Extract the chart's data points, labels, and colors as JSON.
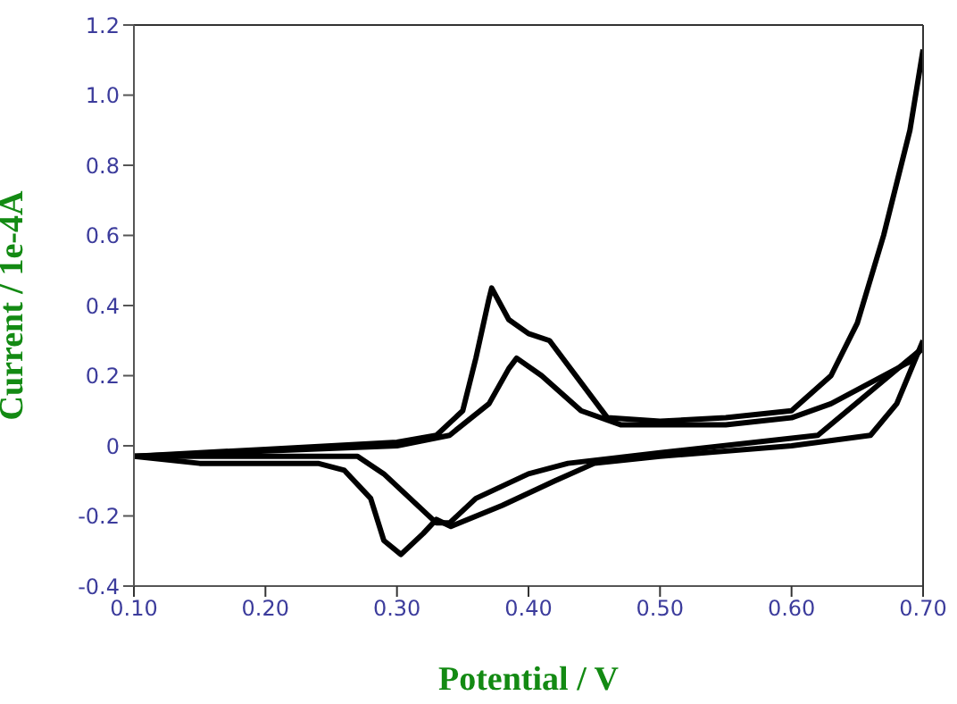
{
  "chart_data": {
    "type": "line",
    "xlabel": "Potential / V",
    "ylabel": "Current / 1e-4A",
    "xlim": [
      0.1,
      0.7
    ],
    "xticks": [
      {
        "value": 0.1,
        "label": "0.10"
      },
      {
        "value": 0.2,
        "label": "0.20"
      },
      {
        "value": 0.3,
        "label": "0.30"
      },
      {
        "value": 0.4,
        "label": "0.40"
      },
      {
        "value": 0.5,
        "label": "0.50"
      },
      {
        "value": 0.6,
        "label": "0.60"
      },
      {
        "value": 0.7,
        "label": "0.70"
      }
    ],
    "ylim": [
      -0.4,
      1.2
    ],
    "yticks": [
      -0.4,
      -0.2,
      0,
      0.2,
      0.4,
      0.6,
      0.8,
      {
        "value": 1,
        "label": "1.0"
      },
      1.2
    ],
    "series": [
      {
        "color": "#000000",
        "x": [
          0.1,
          0.2,
          0.3,
          0.33,
          0.35,
          0.36,
          0.37,
          0.372,
          0.385,
          0.4,
          0.416,
          0.44,
          0.46,
          0.5,
          0.55,
          0.6,
          0.63,
          0.65,
          0.67,
          0.69,
          0.7
        ],
        "values": [
          -0.03,
          -0.01,
          0.01,
          0.03,
          0.1,
          0.25,
          0.42,
          0.45,
          0.36,
          0.32,
          0.3,
          0.18,
          0.08,
          0.07,
          0.08,
          0.1,
          0.2,
          0.35,
          0.6,
          0.9,
          1.13
        ]
      },
      {
        "color": "#000000",
        "x": [
          0.1,
          0.15,
          0.24,
          0.26,
          0.28,
          0.29,
          0.303,
          0.32,
          0.33,
          0.341,
          0.38,
          0.42,
          0.45,
          0.5,
          0.6,
          0.66,
          0.68,
          0.7
        ],
        "values": [
          -0.03,
          -0.05,
          -0.05,
          -0.07,
          -0.15,
          -0.27,
          -0.31,
          -0.25,
          -0.21,
          -0.23,
          -0.17,
          -0.1,
          -0.05,
          -0.03,
          0,
          0.03,
          0.12,
          0.3
        ]
      },
      {
        "color": "#000000",
        "x": [
          0.1,
          0.3,
          0.34,
          0.37,
          0.385,
          0.391,
          0.41,
          0.44,
          0.47,
          0.55,
          0.6,
          0.63,
          0.66,
          0.69,
          0.7
        ],
        "values": [
          -0.03,
          0,
          0.03,
          0.12,
          0.22,
          0.25,
          0.2,
          0.1,
          0.06,
          0.06,
          0.08,
          0.12,
          0.18,
          0.24,
          0.28
        ]
      },
      {
        "color": "#000000",
        "x": [
          0.1,
          0.2,
          0.27,
          0.29,
          0.31,
          0.33,
          0.34,
          0.36,
          0.4,
          0.43,
          0.5,
          0.62,
          0.7
        ],
        "values": [
          -0.03,
          -0.03,
          -0.03,
          -0.08,
          -0.15,
          -0.22,
          -0.22,
          -0.15,
          -0.08,
          -0.05,
          -0.02,
          0.03,
          0.28
        ]
      }
    ]
  }
}
